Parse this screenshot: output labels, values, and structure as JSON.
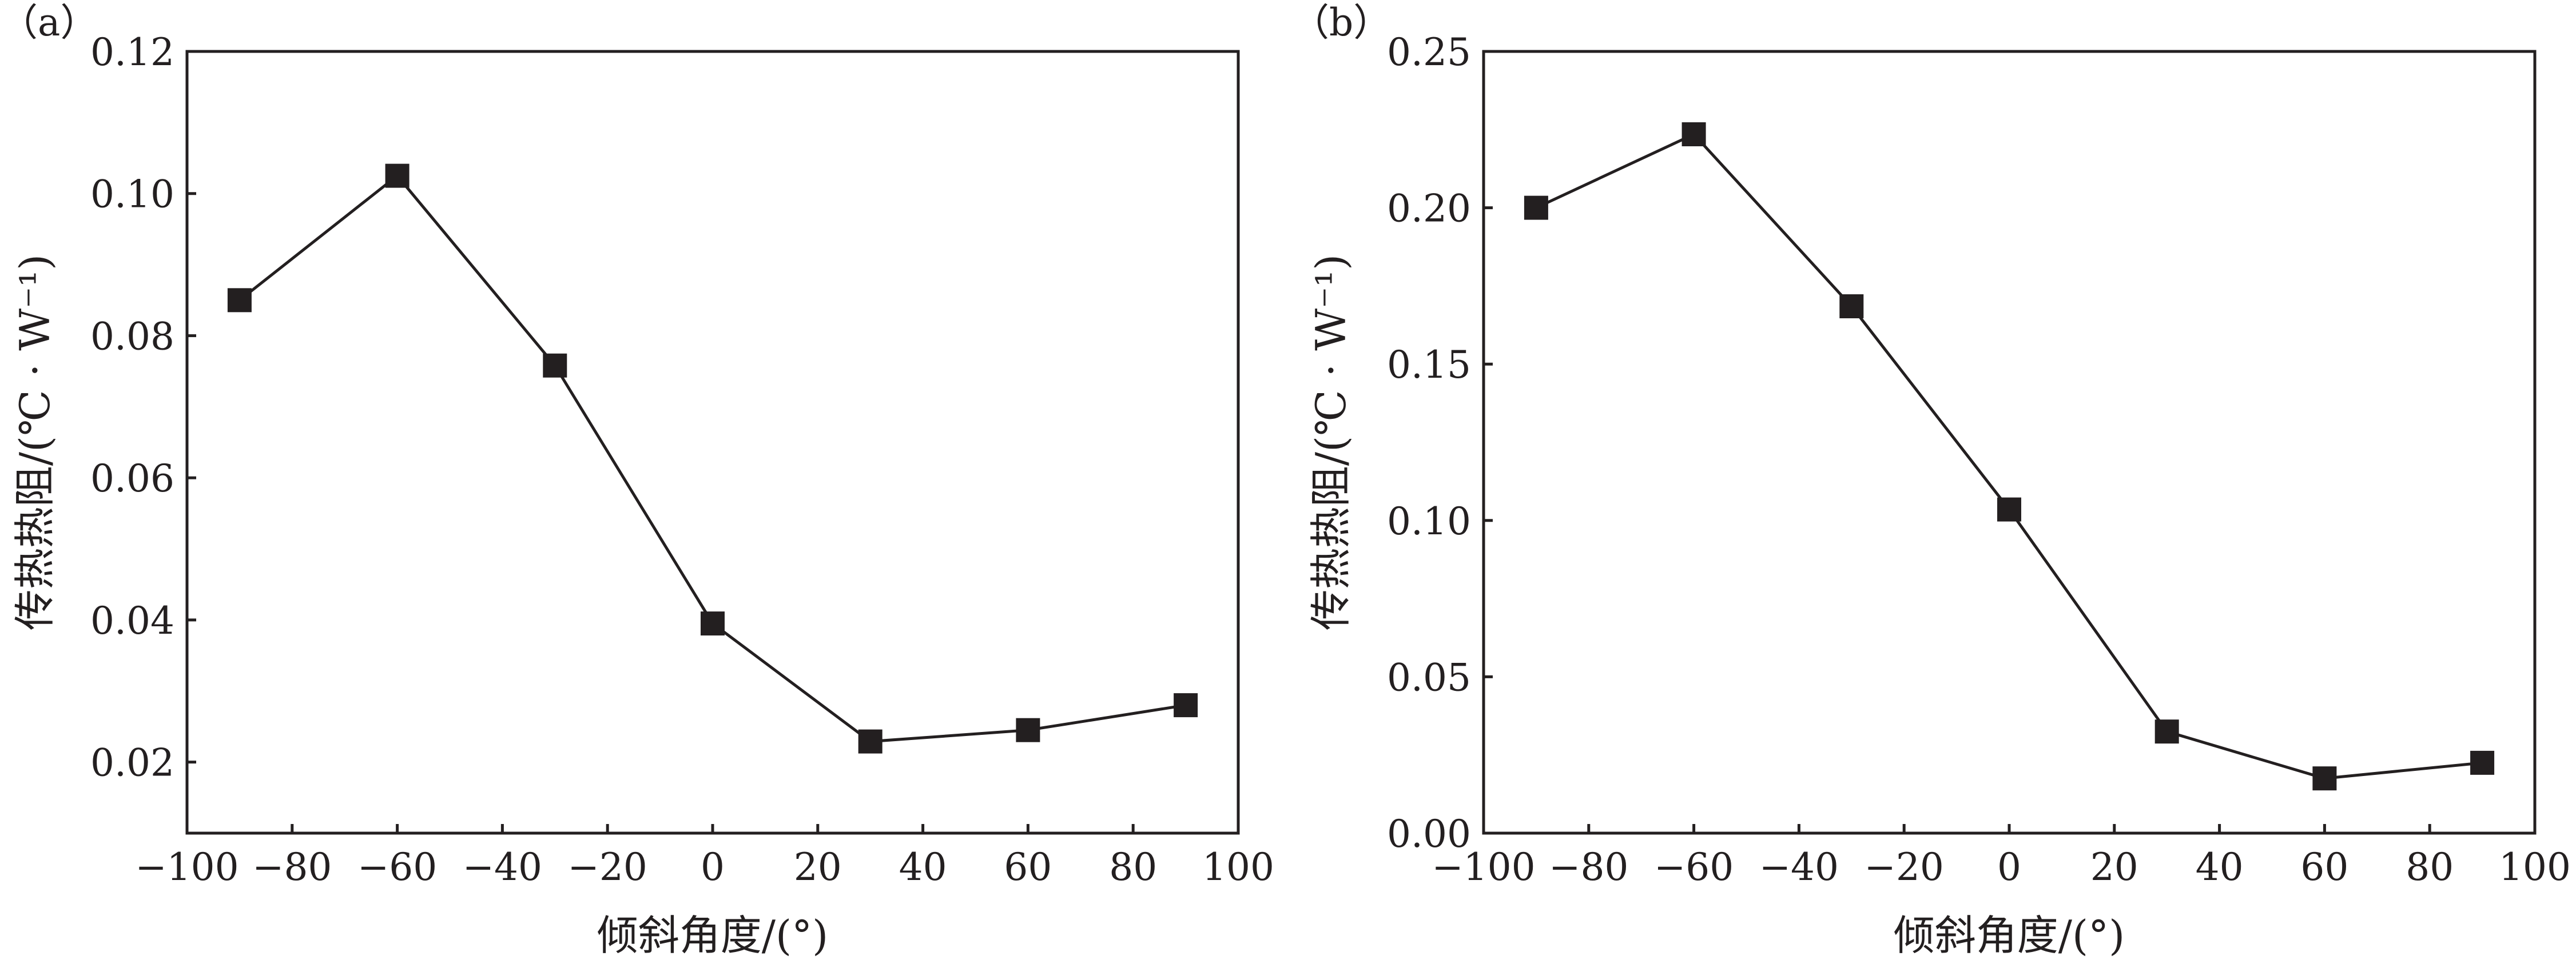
{
  "chart_data": [
    {
      "type": "line",
      "panel_label": "（a）",
      "xlabel": "倾斜角度/(°)",
      "ylabel": "传热热阻/(℃ · W⁻¹)",
      "xlim": [
        -100,
        100
      ],
      "ylim": [
        0.01,
        0.12
      ],
      "xticks": [
        -100,
        -80,
        -60,
        -40,
        -20,
        0,
        20,
        40,
        60,
        80,
        100
      ],
      "xtick_labels": [
        "−100",
        "−80",
        "−60",
        "−40",
        "−20",
        "0",
        "20",
        "40",
        "60",
        "80",
        "100"
      ],
      "yticks": [
        0.02,
        0.04,
        0.06,
        0.08,
        0.1,
        0.12
      ],
      "ytick_labels": [
        "0.02",
        "0.04",
        "0.06",
        "0.08",
        "0.10",
        "0.12"
      ],
      "grid": false,
      "marker": "square",
      "color": "#231f20",
      "x": [
        -90,
        -60,
        -30,
        0,
        30,
        60,
        90
      ],
      "y": [
        0.085,
        0.1025,
        0.0758,
        0.0395,
        0.0229,
        0.0245,
        0.028
      ]
    },
    {
      "type": "line",
      "panel_label": "（b）",
      "xlabel": "倾斜角度/(°)",
      "ylabel": "传热热阻/(℃ · W⁻¹)",
      "xlim": [
        -100,
        100
      ],
      "ylim": [
        0.0,
        0.25
      ],
      "xticks": [
        -100,
        -80,
        -60,
        -40,
        -20,
        0,
        20,
        40,
        60,
        80,
        100
      ],
      "xtick_labels": [
        "−100",
        "−80",
        "−60",
        "−40",
        "−20",
        "0",
        "20",
        "40",
        "60",
        "80",
        "100"
      ],
      "yticks": [
        0.0,
        0.05,
        0.1,
        0.15,
        0.2,
        0.25
      ],
      "ytick_labels": [
        "0.00",
        "0.05",
        "0.10",
        "0.15",
        "0.20",
        "0.25"
      ],
      "grid": false,
      "marker": "square",
      "color": "#231f20",
      "x": [
        -90,
        -60,
        -30,
        0,
        30,
        60,
        90
      ],
      "y": [
        0.2,
        0.2235,
        0.1685,
        0.1035,
        0.0325,
        0.0175,
        0.0225
      ]
    }
  ]
}
